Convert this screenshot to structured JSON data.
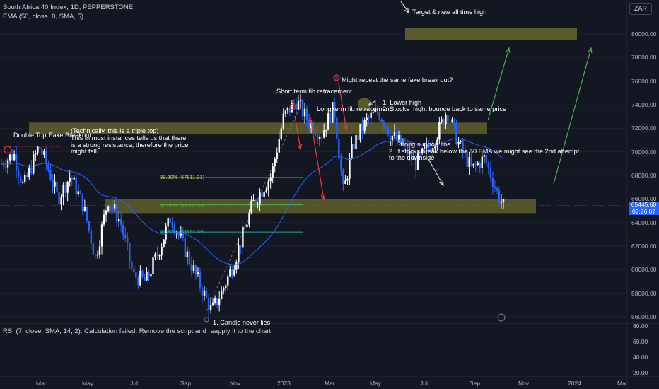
{
  "header": {
    "symbol_line": "South Africa 40 Index, 1D, PEPPERSTONE",
    "indicator_line": "EMA (50, close, 0, SMA, 5)",
    "currency": "ZAR"
  },
  "rsi_panel": {
    "message": "RSI (7, close, SMA, 14, 2): Calculation failed. Remove the script and reapply it to the chart.",
    "y_ticks": [
      "80.00",
      "60.00",
      "40.00",
      "20.00"
    ]
  },
  "price_axis": {
    "ticks": [
      "80000.00",
      "78000.00",
      "76000.00",
      "74000.00",
      "72000.00",
      "70000.00",
      "68000.00",
      "66000.00",
      "64000.00",
      "62000.00",
      "60000.00",
      "58000.00",
      "56000.00"
    ],
    "current_price": "65445.60",
    "countdown": "02:26:07"
  },
  "time_axis": {
    "labels": [
      "Mar",
      "May",
      "Jul",
      "Sep",
      "Nov",
      "2023",
      "Mar",
      "May",
      "Jul",
      "Sep",
      "Nov",
      "2024",
      "Mar"
    ]
  },
  "fib_levels": [
    {
      "label": "38.20% (67811.31)",
      "color": "#b8d94a"
    },
    {
      "label": "50.00% (65501.35)",
      "color": "#4caf50"
    },
    {
      "label": "61.80% (63191.39)",
      "color": "#26a69a"
    }
  ],
  "annotations": {
    "double_top": "Double Top",
    "fake_break": "Fake Breakout",
    "triple_top_1": "(Technically, this is a triple top)",
    "triple_top_2": "This in most instances tells us that there",
    "triple_top_3": "is a strong resistance, therefore the price",
    "triple_top_4": "might fall.",
    "short_fib": "Short term fib retracement...",
    "long_fib": "Long term fib retracement",
    "repeat": "Might repeat the same fake break out?",
    "lower_high_1": "1. Lower high",
    "lower_high_2": "2. Stocks might bounce back to same price",
    "support_1": "1. Strong support line",
    "support_2": "2. If stocks break below the 50 EMA we might see the 2nd attempt",
    "support_3": "to the downside",
    "target": "Target & new all time high",
    "candle": "1. Candle never lies"
  },
  "colors": {
    "background": "#131722",
    "up": "#ffffff",
    "down": "#2962ff",
    "ema": "#2962ff",
    "zone": "#6b6a2e",
    "arrow_red": "#f23645",
    "arrow_green": "#4caf50",
    "accent": "#2962ff"
  },
  "chart_data": {
    "type": "candlestick",
    "symbol": "South Africa 40 Index",
    "timeframe": "1D",
    "ylim": [
      55500,
      81500
    ],
    "last_price": 65445.6,
    "fib_retracement": [
      {
        "level": "38.20%",
        "price": 67811.31
      },
      {
        "level": "50.00%",
        "price": 65501.35
      },
      {
        "level": "61.80%",
        "price": 63191.39
      }
    ],
    "key_path": [
      {
        "t": 0.0,
        "p": 69000
      },
      {
        "t": 0.02,
        "p": 69800
      },
      {
        "t": 0.035,
        "p": 67000
      },
      {
        "t": 0.06,
        "p": 70500
      },
      {
        "t": 0.075,
        "p": 68500
      },
      {
        "t": 0.09,
        "p": 66000
      },
      {
        "t": 0.11,
        "p": 68000
      },
      {
        "t": 0.13,
        "p": 65500
      },
      {
        "t": 0.15,
        "p": 61000
      },
      {
        "t": 0.17,
        "p": 66000
      },
      {
        "t": 0.19,
        "p": 64000
      },
      {
        "t": 0.21,
        "p": 59500
      },
      {
        "t": 0.23,
        "p": 59000
      },
      {
        "t": 0.25,
        "p": 61500
      },
      {
        "t": 0.27,
        "p": 64500
      },
      {
        "t": 0.29,
        "p": 62000
      },
      {
        "t": 0.31,
        "p": 59500
      },
      {
        "t": 0.335,
        "p": 56500
      },
      {
        "t": 0.35,
        "p": 58000
      },
      {
        "t": 0.37,
        "p": 60500
      },
      {
        "t": 0.4,
        "p": 65500
      },
      {
        "t": 0.43,
        "p": 68000
      },
      {
        "t": 0.45,
        "p": 73000
      },
      {
        "t": 0.47,
        "p": 74300
      },
      {
        "t": 0.49,
        "p": 72500
      },
      {
        "t": 0.51,
        "p": 71500
      },
      {
        "t": 0.53,
        "p": 73800
      },
      {
        "t": 0.545,
        "p": 66500
      },
      {
        "t": 0.56,
        "p": 70500
      },
      {
        "t": 0.58,
        "p": 72500
      },
      {
        "t": 0.6,
        "p": 73500
      },
      {
        "t": 0.62,
        "p": 71500
      },
      {
        "t": 0.64,
        "p": 70500
      },
      {
        "t": 0.66,
        "p": 69000
      },
      {
        "t": 0.69,
        "p": 71000
      },
      {
        "t": 0.71,
        "p": 73500
      },
      {
        "t": 0.73,
        "p": 70500
      },
      {
        "t": 0.75,
        "p": 68500
      },
      {
        "t": 0.77,
        "p": 69500
      },
      {
        "t": 0.79,
        "p": 66500
      },
      {
        "t": 0.8,
        "p": 65400
      }
    ]
  }
}
